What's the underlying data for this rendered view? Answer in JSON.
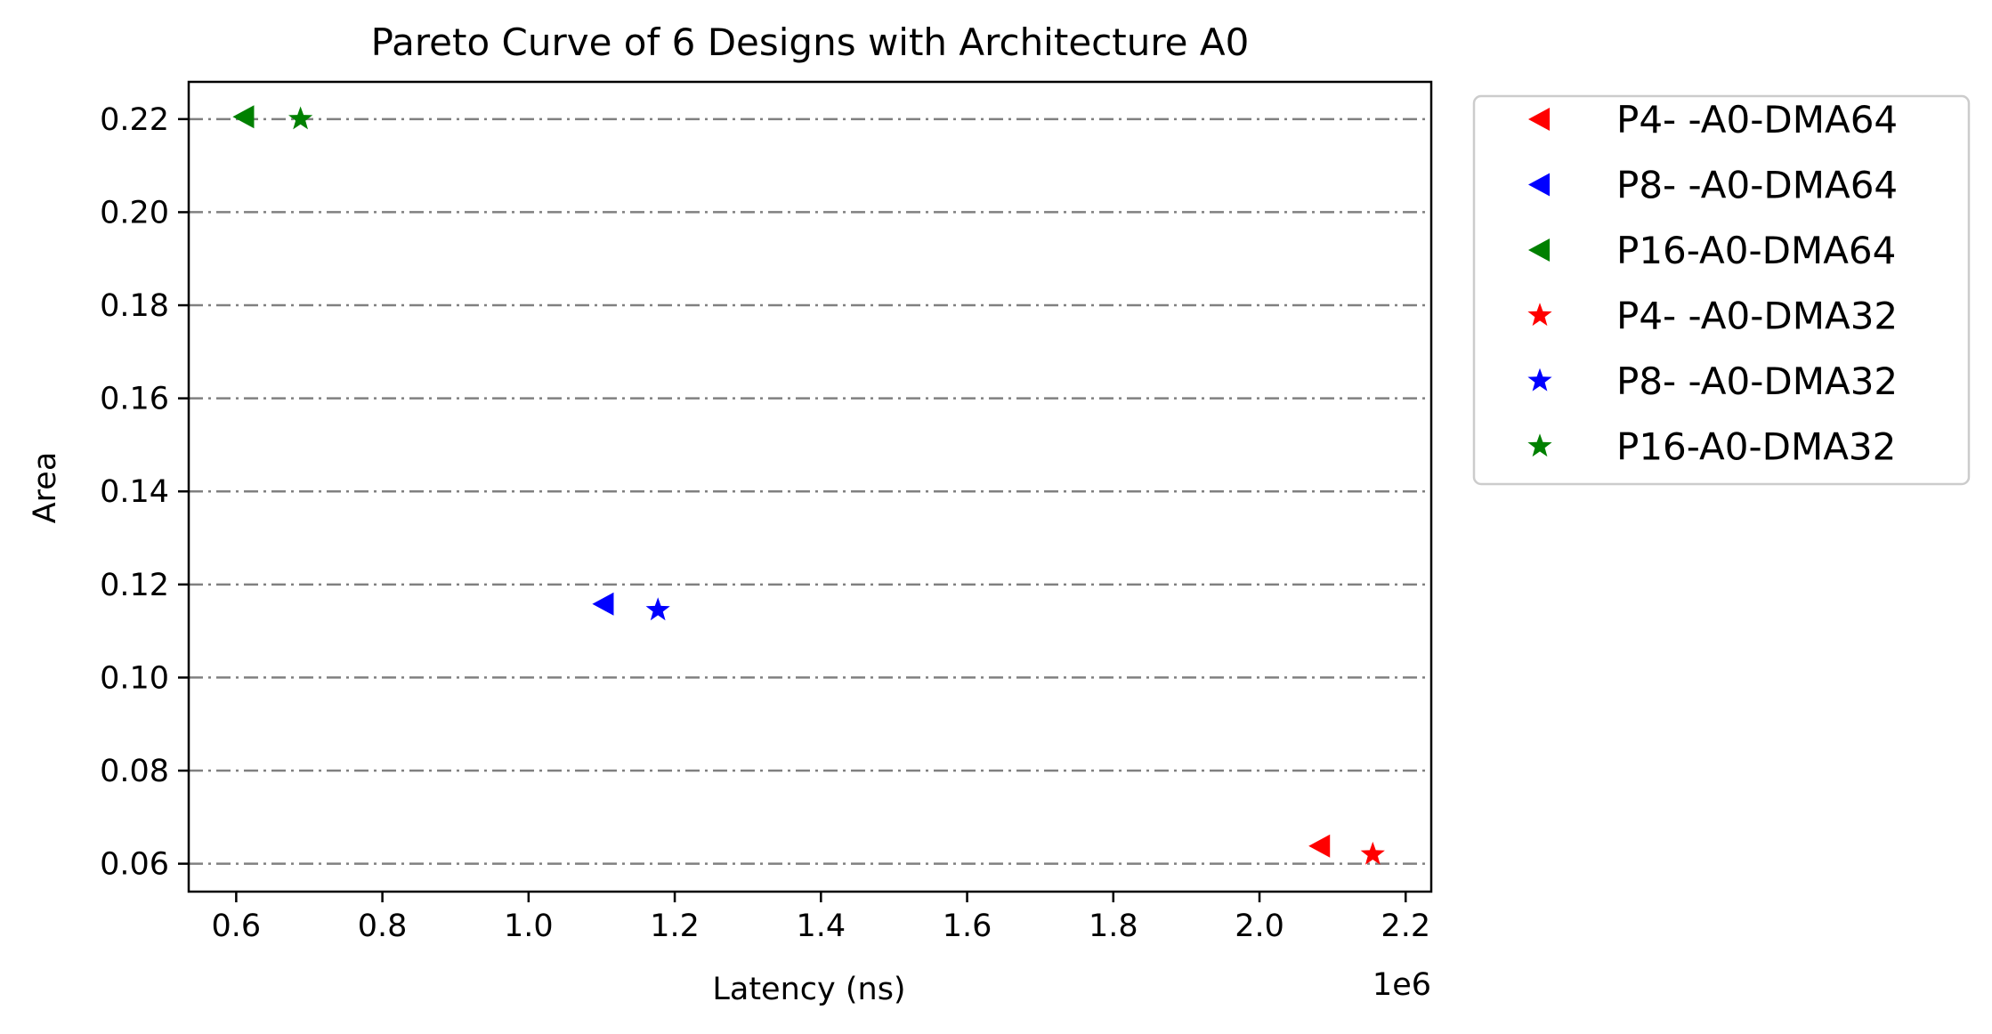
{
  "chart_data": {
    "type": "scatter",
    "title": "Pareto Curve of 6 Designs with Architecture A0",
    "xlabel": "Latency (ns)",
    "ylabel": "Area",
    "x_offset_label": "1e6",
    "xlim": [
      0.535,
      2.235
    ],
    "ylim": [
      0.054,
      0.228
    ],
    "x_ticks": [
      0.6,
      0.8,
      1.0,
      1.2,
      1.4,
      1.6,
      1.8,
      2.0,
      2.2
    ],
    "x_tick_labels": [
      "0.6",
      "0.8",
      "1.0",
      "1.2",
      "1.4",
      "1.6",
      "1.8",
      "2.0",
      "2.2"
    ],
    "y_ticks": [
      0.06,
      0.08,
      0.1,
      0.12,
      0.14,
      0.16,
      0.18,
      0.2,
      0.22
    ],
    "y_tick_labels": [
      "0.06",
      "0.08",
      "0.10",
      "0.12",
      "0.14",
      "0.16",
      "0.18",
      "0.20",
      "0.22"
    ],
    "grid": "horizontal dash-dot",
    "legend_position": "outside upper right",
    "series": [
      {
        "name": "P4- -A0-DMA64",
        "marker": "triangle-left",
        "color": "#ff0000",
        "points": [
          {
            "x": 2.083,
            "y": 0.0638
          }
        ]
      },
      {
        "name": "P8- -A0-DMA64",
        "marker": "triangle-left",
        "color": "#0000ff",
        "points": [
          {
            "x": 1.103,
            "y": 0.1158
          }
        ]
      },
      {
        "name": "P16-A0-DMA64",
        "marker": "triangle-left",
        "color": "#008000",
        "points": [
          {
            "x": 0.611,
            "y": 0.2205
          }
        ]
      },
      {
        "name": "P4- -A0-DMA32",
        "marker": "star",
        "color": "#ff0000",
        "points": [
          {
            "x": 2.155,
            "y": 0.062
          }
        ]
      },
      {
        "name": "P8- -A0-DMA32",
        "marker": "star",
        "color": "#0000ff",
        "points": [
          {
            "x": 1.177,
            "y": 0.1145
          }
        ]
      },
      {
        "name": "P16-A0-DMA32",
        "marker": "star",
        "color": "#008000",
        "points": [
          {
            "x": 0.688,
            "y": 0.22
          }
        ]
      }
    ]
  }
}
